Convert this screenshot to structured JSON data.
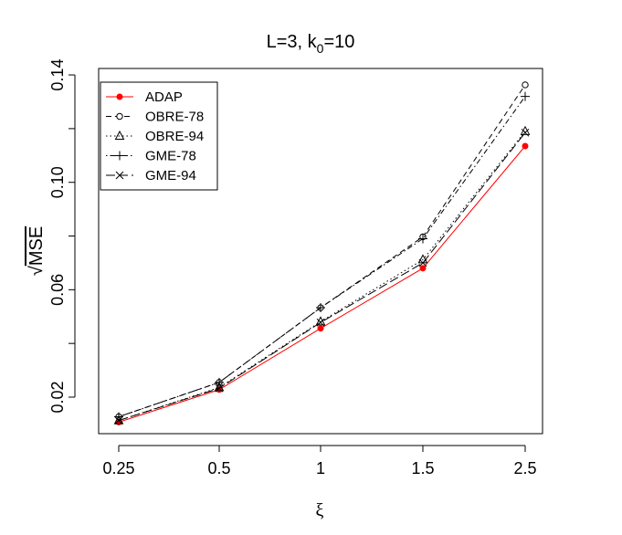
{
  "chart_data": {
    "type": "line",
    "title": {
      "prefix": "L=3, k",
      "subscript": "0",
      "suffix": "=10"
    },
    "xlabel": "ξ",
    "ylabel": "MSE",
    "ylabel_radical": "√",
    "categories": [
      "0.25",
      "0.5",
      "1",
      "1.5",
      "2.5"
    ],
    "yticks": [
      {
        "value": 0.02,
        "label": "0.02"
      },
      {
        "value": 0.04,
        "label": ""
      },
      {
        "value": 0.06,
        "label": "0.06"
      },
      {
        "value": 0.08,
        "label": ""
      },
      {
        "value": 0.1,
        "label": "0.10"
      },
      {
        "value": 0.12,
        "label": ""
      },
      {
        "value": 0.14,
        "label": "0.14"
      }
    ],
    "ylim": [
      0.0064,
      0.1424
    ],
    "legend_position": "top-left",
    "series": [
      {
        "name": "ADAP",
        "color": "#ff0000",
        "dash": "solid",
        "marker": "filled-circle",
        "values": [
          0.0107,
          0.0228,
          0.0456,
          0.068,
          0.1135
        ]
      },
      {
        "name": "OBRE-78",
        "color": "#000000",
        "dash": "dashed",
        "marker": "open-circle",
        "values": [
          0.0127,
          0.0255,
          0.0533,
          0.0797,
          0.1363
        ]
      },
      {
        "name": "OBRE-94",
        "color": "#000000",
        "dash": "dotted",
        "marker": "triangle",
        "values": [
          0.0113,
          0.0236,
          0.0481,
          0.0712,
          0.119
        ]
      },
      {
        "name": "GME-78",
        "color": "#000000",
        "dash": "dotdash",
        "marker": "plus",
        "values": [
          0.0127,
          0.0255,
          0.0533,
          0.079,
          0.132
        ]
      },
      {
        "name": "GME-94",
        "color": "#000000",
        "dash": "longdash",
        "marker": "cross",
        "values": [
          0.0113,
          0.0233,
          0.0478,
          0.07,
          0.1185
        ]
      }
    ]
  }
}
